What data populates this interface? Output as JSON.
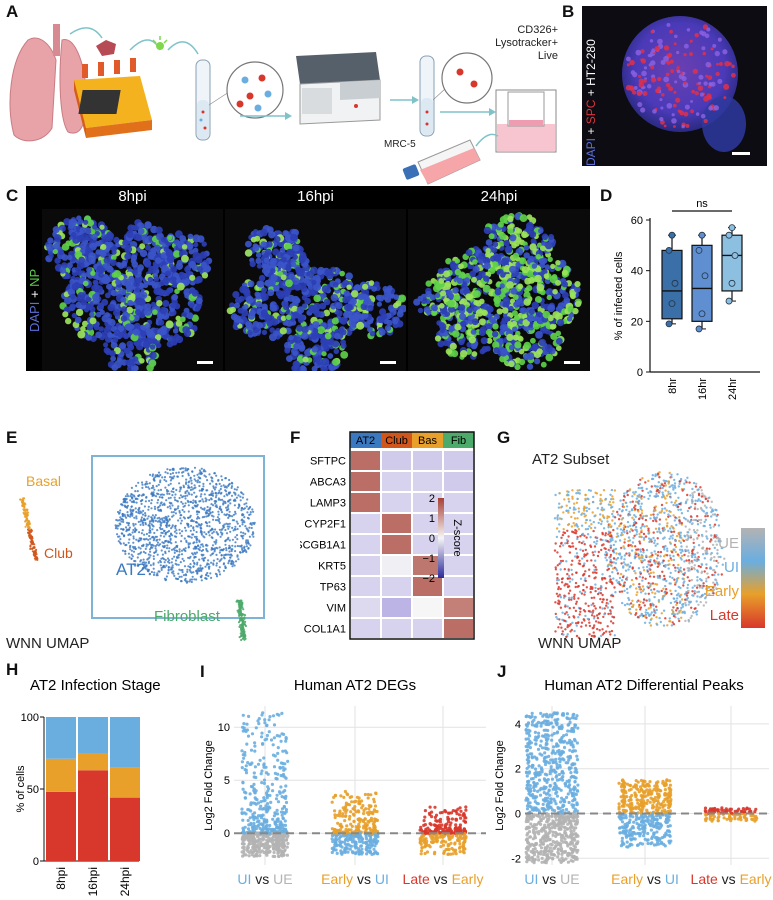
{
  "panels": {
    "A": {
      "label": "A",
      "sort_text_line1": "CD326+",
      "sort_text_line2": "Lysotracker+",
      "sort_text_line3": "Live",
      "coculture_label": "MRC-5"
    },
    "B": {
      "label": "B",
      "stain_dapi": "DAPI",
      "stain_plus1": " + ",
      "stain_spc": "SPC",
      "stain_plus2": " + ",
      "stain_ht2": "HT2-280"
    },
    "C": {
      "label": "C",
      "timepoints": [
        "8hpi",
        "16hpi",
        "24hpi"
      ],
      "stain_dapi": "DAPI",
      "stain_plus": " + ",
      "stain_np": "NP"
    },
    "D": {
      "label": "D",
      "significance": "ns"
    },
    "E": {
      "label": "E",
      "clusters": {
        "basal": "Basal",
        "club": "Club",
        "at2": "AT2",
        "fibroblast": "Fibroblast"
      },
      "umap_label": "WNN UMAP"
    },
    "F": {
      "label": "F",
      "colorbar_title": "Z-score",
      "colorbar_ticks": [
        "2",
        "1",
        "0",
        "−1",
        "−2"
      ]
    },
    "G": {
      "label": "G",
      "title": "AT2 Subset",
      "legend": [
        "UE",
        "UI",
        "Early",
        "Late"
      ],
      "umap_label": "WNN UMAP"
    },
    "H": {
      "label": "H"
    },
    "I": {
      "label": "I",
      "groups": [
        {
          "a": "UI",
          "vs": " vs ",
          "b": "UE"
        },
        {
          "a": "Early",
          "vs": " vs ",
          "b": "UI"
        },
        {
          "a": "Late",
          "vs": " vs ",
          "b": "Early"
        }
      ]
    },
    "J": {
      "label": "J",
      "groups": [
        {
          "a": "UI",
          "vs": " vs ",
          "b": "UE"
        },
        {
          "a": "Early",
          "vs": " vs ",
          "b": "UI"
        },
        {
          "a": "Late",
          "vs": " vs ",
          "b": "Early"
        }
      ]
    }
  },
  "colors": {
    "ue": "#b3b3b3",
    "ui": "#6aaee0",
    "early": "#e8a02a",
    "late": "#d8372b",
    "at2": "#3a78c0",
    "club": "#d0561b",
    "basal": "#e8a02a",
    "fib": "#4caa6a"
  },
  "chart_data": [
    {
      "panel": "D",
      "type": "box",
      "categories": [
        "8hr",
        "16hr",
        "24hr"
      ],
      "ylabel": "% of infected cells",
      "ylim": [
        0,
        60
      ],
      "yticks": [
        0,
        20,
        40,
        60
      ],
      "boxes": [
        {
          "min": 19,
          "q1": 21,
          "median": 32,
          "q3": 48,
          "max": 54,
          "points": [
            19,
            27,
            35,
            48,
            54
          ]
        },
        {
          "min": 17,
          "q1": 20,
          "median": 33,
          "q3": 50,
          "max": 54,
          "points": [
            17,
            23,
            38,
            48,
            54
          ]
        },
        {
          "min": 28,
          "q1": 32,
          "median": 46,
          "q3": 54,
          "max": 57,
          "points": [
            28,
            35,
            46,
            54,
            57
          ]
        }
      ]
    },
    {
      "panel": "F",
      "type": "heatmap",
      "columns": [
        "AT2",
        "Club",
        "Bas",
        "Fib"
      ],
      "rows": [
        "SFTPC",
        "ABCA3",
        "LAMP3",
        "CYP2F1",
        "SCGB1A1",
        "KRT5",
        "TP63",
        "VIM",
        "COL1A1"
      ],
      "values": [
        [
          1.5,
          -0.6,
          -0.6,
          -0.6
        ],
        [
          1.5,
          -0.5,
          -0.5,
          -0.6
        ],
        [
          1.5,
          -0.5,
          -0.5,
          -0.5
        ],
        [
          -0.5,
          1.5,
          -0.5,
          -0.5
        ],
        [
          -0.5,
          1.5,
          -0.5,
          -0.5
        ],
        [
          -0.5,
          -0.1,
          1.4,
          -0.5
        ],
        [
          -0.5,
          -0.5,
          1.5,
          -0.5
        ],
        [
          -0.4,
          -0.9,
          0.0,
          1.3
        ],
        [
          -0.5,
          -0.5,
          -0.5,
          1.5
        ]
      ],
      "zlim": [
        -2,
        2
      ]
    },
    {
      "panel": "H",
      "type": "bar",
      "title": "AT2 Infection Stage",
      "ylabel": "% of cells",
      "categories": [
        "8hpi",
        "16hpi",
        "24hpi"
      ],
      "yticks": [
        0,
        50,
        100
      ],
      "ylim": [
        0,
        100
      ],
      "series": [
        {
          "values": [
            48,
            63,
            44
          ]
        },
        {
          "values": [
            23,
            12,
            21
          ]
        },
        {
          "values": [
            29,
            25,
            35
          ]
        }
      ]
    },
    {
      "panel": "I",
      "type": "scatter",
      "title": "Human AT2 DEGs",
      "ylabel": "Log2 Fold Change",
      "ylim": [
        -3,
        12
      ],
      "yticks": [
        0,
        5,
        10
      ],
      "groups": [
        {
          "top": 11.5,
          "bottom": -2.2
        },
        {
          "top": 4,
          "bottom": -2
        },
        {
          "top": 2.5,
          "bottom": -2
        }
      ]
    },
    {
      "panel": "J",
      "type": "scatter",
      "title": "Human AT2 Differential Peaks",
      "ylabel": "Log2 Fold Change",
      "ylim": [
        -2.3,
        4.8
      ],
      "yticks": [
        -2,
        0,
        2,
        4
      ],
      "groups": [
        {
          "top": 4.5,
          "bottom": -2.2
        },
        {
          "top": 1.5,
          "bottom": -1.5
        },
        {
          "top": 0.25,
          "bottom": -0.35
        }
      ]
    }
  ]
}
